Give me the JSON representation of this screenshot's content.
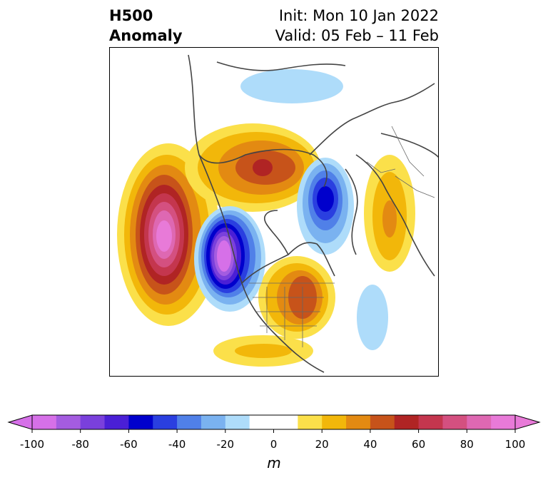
{
  "title": {
    "left_line1": "H500",
    "left_line2": "Anomaly",
    "right_line1": "Init: Mon 10 Jan 2022",
    "right_line2": "Valid: 05 Feb – 11 Feb"
  },
  "colorbar": {
    "unit": "m",
    "tick_labels": [
      "-100",
      "-80",
      "-60",
      "-40",
      "-20",
      "0",
      "20",
      "40",
      "60",
      "80",
      "100"
    ],
    "colors": [
      "#d670e8",
      "#a45ce0",
      "#7a40dc",
      "#4a1fd6",
      "#0000cc",
      "#2a3fe0",
      "#5080e8",
      "#7ab2f0",
      "#aedcfa",
      "#ffffff",
      "#ffffff",
      "#fbe04a",
      "#f2b70a",
      "#e38a12",
      "#c7531a",
      "#b02424",
      "#c4364e",
      "#d45080",
      "#de68b2",
      "#e87ad8"
    ]
  },
  "map": {
    "projection": "north-polar-stereographic",
    "anomalies": [
      {
        "name": "north-pacific-ridge",
        "sign": "positive",
        "peak": 100
      },
      {
        "name": "western-canada-trough",
        "sign": "negative",
        "peak": -100
      },
      {
        "name": "eastern-us-ridge",
        "sign": "positive",
        "peak": 50
      },
      {
        "name": "alaska-arctic-ridge",
        "sign": "positive",
        "peak": 60
      },
      {
        "name": "greenland-trough",
        "sign": "negative",
        "peak": -60
      },
      {
        "name": "siberian-trough",
        "sign": "negative",
        "peak": -20
      },
      {
        "name": "europe-ridge",
        "sign": "positive",
        "peak": 30
      },
      {
        "name": "atlantic-trough",
        "sign": "negative",
        "peak": -20
      }
    ]
  }
}
